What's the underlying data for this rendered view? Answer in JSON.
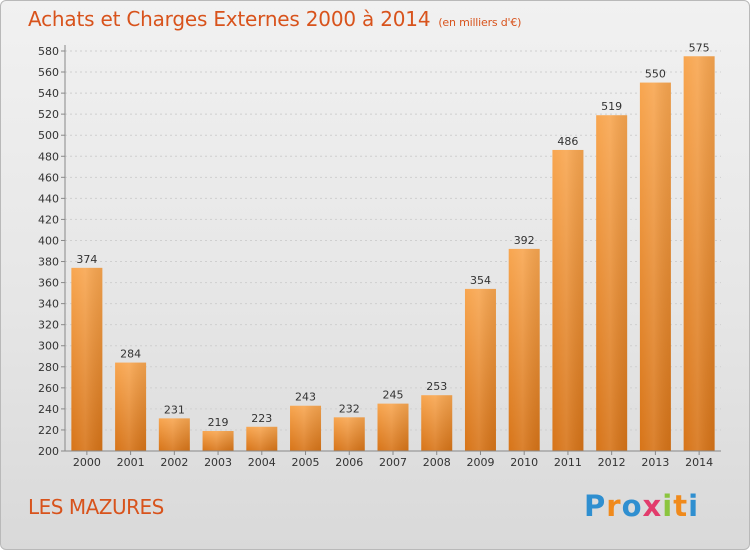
{
  "title": "Achats et Charges Externes 2000 à 2014",
  "subtitle": "(en milliers d'€)",
  "place_name": "LES MAZURES",
  "logo": {
    "letters": [
      "P",
      "r",
      "o",
      "x",
      "i",
      "t",
      "i"
    ],
    "colors": [
      "#2f8fd0",
      "#f08a1c",
      "#2f8fd0",
      "#e23c6c",
      "#8bc53f",
      "#f08a1c",
      "#2f8fd0"
    ]
  },
  "colors": {
    "bar_light": "#f8a650",
    "bar_dark": "#d77418",
    "text_accent": "#d8531c"
  },
  "chart_data": {
    "type": "bar",
    "categories": [
      "2000",
      "2001",
      "2002",
      "2003",
      "2004",
      "2005",
      "2006",
      "2007",
      "2008",
      "2009",
      "2010",
      "2011",
      "2012",
      "2013",
      "2014"
    ],
    "values": [
      374,
      284,
      231,
      219,
      223,
      243,
      232,
      245,
      253,
      354,
      392,
      486,
      519,
      550,
      575
    ],
    "yticks": [
      200,
      220,
      240,
      260,
      280,
      300,
      320,
      340,
      360,
      380,
      400,
      420,
      440,
      460,
      480,
      500,
      520,
      540,
      560,
      580
    ],
    "ylim": [
      200,
      580
    ],
    "grid": true,
    "data_labels": true
  }
}
